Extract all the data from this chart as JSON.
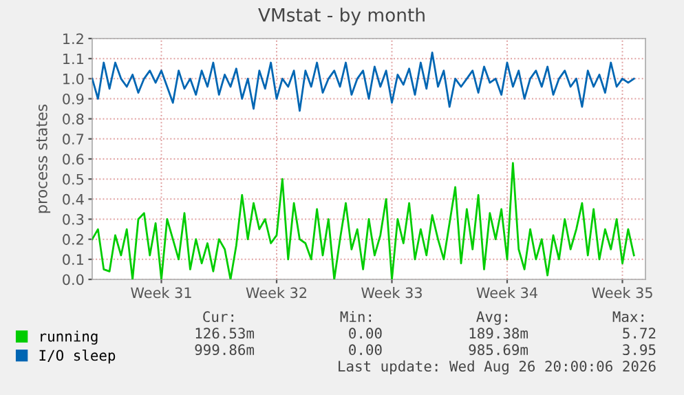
{
  "chart_data": {
    "type": "line",
    "title": "VMstat - by month",
    "ylabel": "process states",
    "categories": [
      null,
      null,
      null,
      null,
      null,
      null,
      null,
      null,
      null,
      null,
      null,
      null,
      "Week 31",
      null,
      null,
      null,
      null,
      null,
      null,
      null,
      null,
      null,
      null,
      null,
      null,
      null,
      null,
      null,
      null,
      null,
      null,
      null,
      "Week 32",
      null,
      null,
      null,
      null,
      null,
      null,
      null,
      null,
      null,
      null,
      null,
      null,
      null,
      null,
      null,
      null,
      null,
      null,
      null,
      "Week 33",
      null,
      null,
      null,
      null,
      null,
      null,
      null,
      null,
      null,
      null,
      null,
      null,
      null,
      null,
      null,
      null,
      null,
      null,
      null,
      "Week 34",
      null,
      null,
      null,
      null,
      null,
      null,
      null,
      null,
      null,
      null,
      null,
      null,
      null,
      null,
      null,
      null,
      null,
      null,
      null,
      "Week 35",
      null,
      null
    ],
    "series": [
      {
        "name": "running",
        "color": "#00cc00",
        "values": [
          0.2,
          0.25,
          0.05,
          0.04,
          0.22,
          0.12,
          0.25,
          0.0,
          0.3,
          0.33,
          0.12,
          0.28,
          0.0,
          0.3,
          0.2,
          0.1,
          0.33,
          0.05,
          0.2,
          0.08,
          0.18,
          0.04,
          0.2,
          0.15,
          0.0,
          0.17,
          0.42,
          0.2,
          0.38,
          0.25,
          0.3,
          0.18,
          0.22,
          0.5,
          0.1,
          0.38,
          0.2,
          0.18,
          0.1,
          0.35,
          0.12,
          0.3,
          0.0,
          0.2,
          0.38,
          0.15,
          0.25,
          0.05,
          0.3,
          0.12,
          0.22,
          0.4,
          0.0,
          0.3,
          0.18,
          0.38,
          0.1,
          0.25,
          0.12,
          0.32,
          0.2,
          0.1,
          0.28,
          0.46,
          0.08,
          0.35,
          0.15,
          0.42,
          0.05,
          0.33,
          0.2,
          0.35,
          0.1,
          0.58,
          0.15,
          0.05,
          0.25,
          0.1,
          0.2,
          0.02,
          0.22,
          0.1,
          0.3,
          0.15,
          0.25,
          0.38,
          0.12,
          0.35,
          0.1,
          0.25,
          0.15,
          0.3,
          0.08,
          0.25,
          0.12
        ]
      },
      {
        "name": "I/O sleep",
        "color": "#0066b3",
        "values": [
          1.0,
          0.9,
          1.08,
          0.95,
          1.08,
          1.0,
          0.96,
          1.02,
          0.93,
          1.0,
          1.04,
          0.98,
          1.04,
          0.96,
          0.88,
          1.04,
          0.95,
          1.0,
          0.92,
          1.04,
          0.96,
          1.08,
          0.92,
          1.02,
          0.96,
          1.05,
          0.9,
          1.0,
          0.85,
          1.04,
          0.95,
          1.08,
          0.9,
          1.0,
          0.96,
          1.04,
          0.84,
          1.04,
          0.96,
          1.08,
          0.93,
          1.0,
          1.04,
          0.96,
          1.08,
          0.92,
          1.0,
          1.04,
          0.9,
          1.06,
          0.96,
          1.04,
          0.88,
          1.02,
          0.97,
          1.05,
          0.92,
          1.08,
          0.95,
          1.13,
          0.96,
          1.04,
          0.86,
          1.0,
          0.96,
          1.0,
          1.04,
          0.93,
          1.06,
          0.98,
          1.0,
          0.92,
          1.08,
          0.96,
          1.04,
          0.9,
          1.0,
          1.04,
          0.96,
          1.06,
          0.92,
          1.0,
          1.04,
          0.96,
          1.0,
          0.86,
          1.04,
          0.96,
          1.02,
          0.93,
          1.08,
          0.96,
          1.0,
          0.98,
          1.0
        ]
      }
    ],
    "ylim": [
      0,
      1.2
    ],
    "yticks": [
      {
        "value": 0,
        "label": "0.0"
      },
      {
        "value": 0.1,
        "label": "0.1"
      },
      {
        "value": 0.2,
        "label": "0.2"
      },
      {
        "value": 0.3,
        "label": "0.3"
      },
      {
        "value": 0.4,
        "label": "0.4"
      },
      {
        "value": 0.5,
        "label": "0.5"
      },
      {
        "value": 0.6,
        "label": "0.6"
      },
      {
        "value": 0.7,
        "label": "0.7"
      },
      {
        "value": 0.8,
        "label": "0.8"
      },
      {
        "value": 0.9,
        "label": "0.9"
      },
      {
        "value": 1.0,
        "label": "1.0"
      },
      {
        "value": 1.1,
        "label": "1.1"
      },
      {
        "value": 1.2,
        "label": "1.2"
      }
    ],
    "grid": true,
    "legend": "bottom",
    "marker": "none",
    "line_style": "solid",
    "annotations": [
      "Cur:",
      "Min:",
      "Avg:",
      "Max:",
      "126.53m",
      "0.00",
      "189.38m",
      "5.72",
      "999.86m",
      "0.00",
      "985.69m",
      "3.95",
      "Last update: Wed Aug 26 20:00:06 2026"
    ]
  }
}
